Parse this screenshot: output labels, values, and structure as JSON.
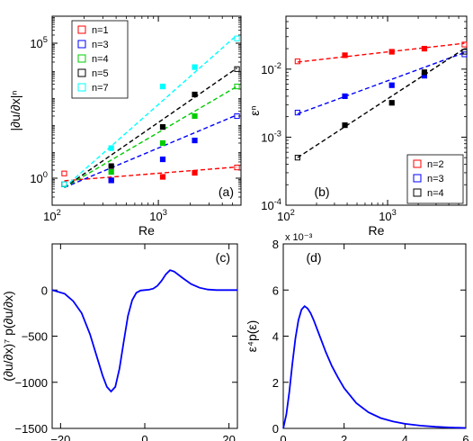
{
  "chart_data": [
    {
      "panel": "(a)",
      "type": "scatter",
      "xlabel": "Re",
      "ylabel": "|∂u/∂x|ⁿ",
      "xscale": "log",
      "yscale": "log",
      "xlim": [
        100,
        6000
      ],
      "ylim": [
        0.1,
        1000000
      ],
      "xticks": [
        {
          "v": 100,
          "b": "10",
          "e": "2"
        },
        {
          "v": 1000,
          "b": "10",
          "e": "3"
        }
      ],
      "yticks": [
        {
          "v": 1,
          "b": "10",
          "e": "0"
        },
        {
          "v": 100000,
          "b": "10",
          "e": "5"
        }
      ],
      "legend_position": "upper-left",
      "x": [
        130,
        360,
        1100,
        2200,
        5500
      ],
      "series": [
        {
          "name": "n=1",
          "color": "#ff0000",
          "values": [
            1.5,
            0.83,
            1.12,
            1.58,
            2.5
          ],
          "fit": [
            [
              130,
              0.8
            ],
            [
              5500,
              2.6
            ]
          ]
        },
        {
          "name": "n=3",
          "color": "#0000ff",
          "values": [
            0.6,
            0.83,
            5,
            25,
            200
          ],
          "fit": [
            [
              130,
              0.45
            ],
            [
              5500,
              220
            ]
          ]
        },
        {
          "name": "n=4",
          "color": "#00cc00",
          "values": [
            0.6,
            1.7,
            20,
            200,
            2500
          ],
          "fit": [
            [
              130,
              0.45
            ],
            [
              5500,
              2500
            ]
          ]
        },
        {
          "name": "n=5",
          "color": "#000000",
          "values": [
            0.6,
            2.8,
            79,
            1260,
            11000
          ],
          "fit": [
            [
              130,
              0.45
            ],
            [
              5500,
              12000
            ]
          ]
        },
        {
          "name": "n=7",
          "color": "#00ffff",
          "values": [
            0.6,
            13,
            2500,
            13000,
            150000
          ],
          "fit": [
            [
              130,
              0.45
            ],
            [
              5500,
              200000
            ]
          ]
        }
      ]
    },
    {
      "panel": "(b)",
      "type": "scatter",
      "xlabel": "Re",
      "ylabel": "εⁿ",
      "xscale": "log",
      "yscale": "log",
      "xlim": [
        100,
        6000
      ],
      "ylim": [
        0.0001,
        0.06
      ],
      "xticks": [
        {
          "v": 100,
          "b": "10",
          "e": "2"
        },
        {
          "v": 1000,
          "b": "10",
          "e": "3"
        }
      ],
      "yticks": [
        {
          "v": 0.0001,
          "b": "10",
          "e": "-4"
        },
        {
          "v": 0.001,
          "b": "10",
          "e": "-3"
        },
        {
          "v": 0.01,
          "b": "10",
          "e": "-2"
        }
      ],
      "legend_position": "lower-right",
      "x": [
        130,
        380,
        1100,
        2300,
        5700
      ],
      "series": [
        {
          "name": "n=2",
          "color": "#ff0000",
          "values": [
            0.013,
            0.016,
            0.018,
            0.02,
            0.023
          ],
          "fit": [
            [
              130,
              0.0127
            ],
            [
              5700,
              0.024
            ]
          ]
        },
        {
          "name": "n=3",
          "color": "#0000ff",
          "values": [
            0.0023,
            0.004,
            0.0058,
            0.008,
            0.0165
          ],
          "fit": [
            [
              130,
              0.0022
            ],
            [
              5700,
              0.0175
            ]
          ]
        },
        {
          "name": "n=4",
          "color": "#000000",
          "values": [
            0.0005,
            0.0015,
            0.0032,
            0.009,
            0.018
          ],
          "fit": [
            [
              130,
              0.0005
            ],
            [
              5700,
              0.02
            ]
          ]
        }
      ]
    },
    {
      "panel": "(c)",
      "type": "line",
      "xlabel": "∂u/∂x",
      "ylabel": "(∂u/∂x)⁷ p(∂u/∂x)",
      "xlim": [
        -22,
        22
      ],
      "ylim": [
        -1500,
        500
      ],
      "xticks": [
        -20,
        0,
        20
      ],
      "yticks": [
        -1500,
        -1000,
        -500,
        0
      ],
      "color": "#0000ff",
      "points": [
        [
          -22,
          0
        ],
        [
          -19,
          -40
        ],
        [
          -17,
          -120
        ],
        [
          -15,
          -250
        ],
        [
          -13,
          -480
        ],
        [
          -11,
          -780
        ],
        [
          -10,
          -930
        ],
        [
          -9,
          -1050
        ],
        [
          -8,
          -1100
        ],
        [
          -7,
          -1050
        ],
        [
          -6,
          -850
        ],
        [
          -5,
          -560
        ],
        [
          -4,
          -280
        ],
        [
          -3,
          -110
        ],
        [
          -2,
          -30
        ],
        [
          -1,
          -5
        ],
        [
          0,
          0
        ],
        [
          1,
          3
        ],
        [
          2,
          15
        ],
        [
          3,
          45
        ],
        [
          4,
          100
        ],
        [
          5,
          170
        ],
        [
          6,
          215
        ],
        [
          7,
          200
        ],
        [
          9,
          130
        ],
        [
          11,
          65
        ],
        [
          13,
          25
        ],
        [
          15,
          5
        ],
        [
          17,
          0
        ],
        [
          22,
          0
        ]
      ]
    },
    {
      "panel": "(d)",
      "type": "line",
      "xlabel": "ε",
      "ylabel": "ε⁴p(ε)",
      "ylabel_unit": "x 10⁻³",
      "xlim": [
        0,
        6
      ],
      "ylim": [
        0,
        8
      ],
      "xticks": [
        0,
        2,
        4,
        6
      ],
      "yticks": [
        0,
        2,
        4,
        6,
        8
      ],
      "color": "#0000ff",
      "points": [
        [
          0,
          0
        ],
        [
          0.1,
          0.6
        ],
        [
          0.2,
          1.6
        ],
        [
          0.3,
          2.8
        ],
        [
          0.4,
          3.9
        ],
        [
          0.5,
          4.7
        ],
        [
          0.6,
          5.15
        ],
        [
          0.7,
          5.3
        ],
        [
          0.8,
          5.2
        ],
        [
          0.9,
          5.0
        ],
        [
          1.0,
          4.7
        ],
        [
          1.2,
          4.0
        ],
        [
          1.4,
          3.3
        ],
        [
          1.6,
          2.7
        ],
        [
          1.8,
          2.2
        ],
        [
          2.0,
          1.75
        ],
        [
          2.4,
          1.1
        ],
        [
          2.8,
          0.7
        ],
        [
          3.2,
          0.45
        ],
        [
          3.6,
          0.3
        ],
        [
          4.0,
          0.2
        ],
        [
          4.5,
          0.12
        ],
        [
          5.0,
          0.07
        ],
        [
          5.5,
          0.04
        ],
        [
          6.0,
          0.02
        ]
      ]
    }
  ]
}
